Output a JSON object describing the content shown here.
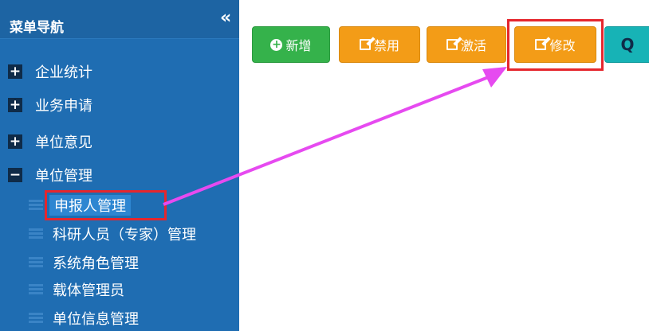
{
  "sidebar": {
    "title": "菜单导航",
    "collapse_glyph": "«",
    "groups": [
      {
        "label": "企业统计",
        "icon": "plus"
      },
      {
        "label": "业务申请",
        "icon": "plus"
      },
      {
        "label": "单位意见",
        "icon": "plus"
      },
      {
        "label": "单位管理",
        "icon": "minus"
      }
    ],
    "sub_items": [
      {
        "label": "申报人管理",
        "active": true
      },
      {
        "label": "科研人员（专家）管理"
      },
      {
        "label": "系统角色管理"
      },
      {
        "label": "载体管理员"
      },
      {
        "label": "单位信息管理"
      }
    ]
  },
  "toolbar": {
    "add_label": "新增",
    "disable_label": "禁用",
    "activate_label": "激活",
    "edit_label": "修改",
    "search_glyph": "Q"
  },
  "colors": {
    "sidebar_bg": "#1f6db2",
    "green": "#35b24b",
    "orange": "#f39c17",
    "teal": "#17b3b6",
    "highlight": "#e5262d",
    "arrow": "#e64af0"
  }
}
